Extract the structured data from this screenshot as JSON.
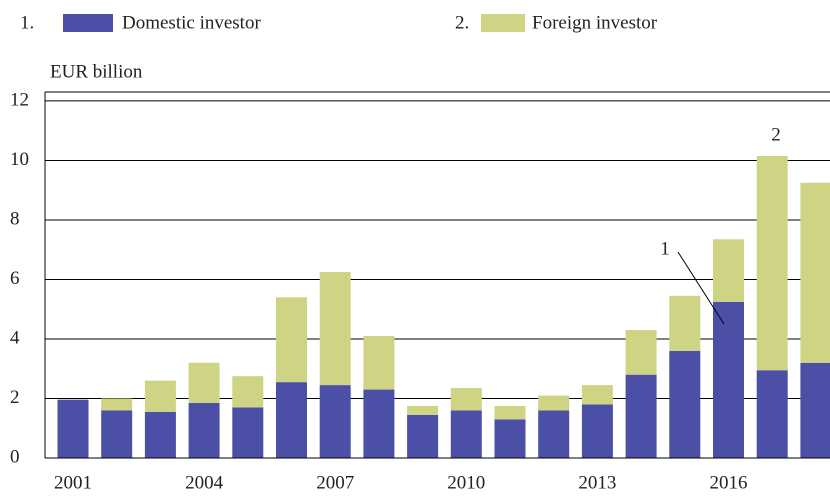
{
  "chart_data": {
    "type": "stacked-bar",
    "y_label": "EUR billion",
    "legend_numbers": [
      "1.",
      "2."
    ],
    "categories": [
      "2001",
      null,
      null,
      "2004",
      null,
      null,
      "2007",
      null,
      null,
      "2010",
      null,
      null,
      "2013",
      null,
      null,
      "2016",
      null,
      null
    ],
    "series": [
      {
        "name": "Domestic investor",
        "color": "#4b4fa6",
        "values": [
          1.96,
          1.6,
          1.55,
          1.85,
          1.7,
          2.55,
          2.45,
          2.3,
          1.45,
          1.6,
          1.3,
          1.6,
          1.8,
          2.8,
          3.6,
          5.25,
          2.95,
          3.2
        ]
      },
      {
        "name": "Foreign investor",
        "color": "#cfd485",
        "values": [
          0,
          0.4,
          1.05,
          1.35,
          1.05,
          2.85,
          3.8,
          1.8,
          0.3,
          0.75,
          0.45,
          0.5,
          0.65,
          1.5,
          1.85,
          2.1,
          7.2,
          6.05
        ]
      }
    ],
    "annotations": [
      {
        "text": "1"
      },
      {
        "text": "2"
      }
    ],
    "ylim": [
      0,
      12.3
    ],
    "yticks": [
      0,
      2,
      4,
      6,
      8,
      10,
      12
    ],
    "grid": true
  }
}
